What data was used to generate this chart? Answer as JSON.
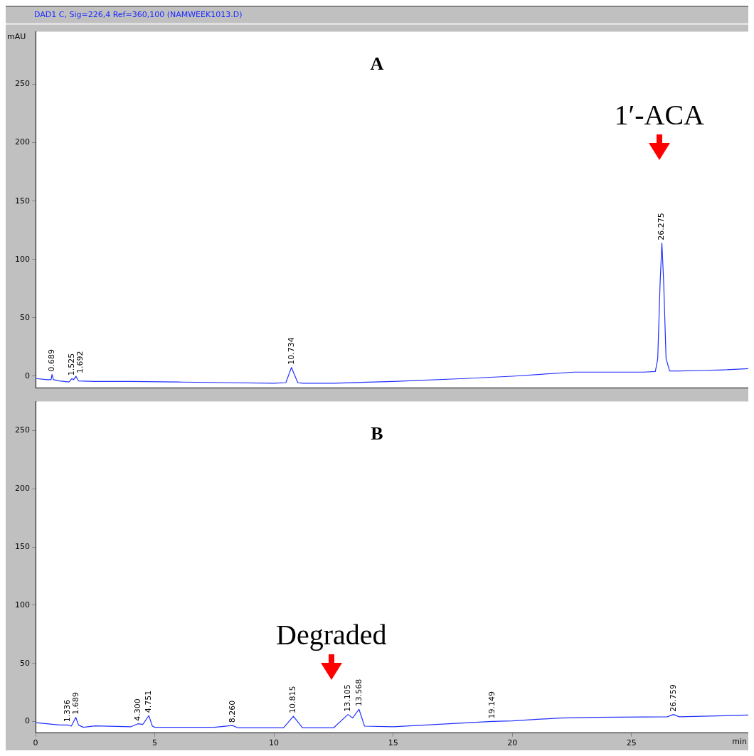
{
  "chart_data": [
    {
      "type": "line",
      "title": "DAD1 C, Sig=226,4 Ref=360,100 (NAMWEEK1013.D)",
      "ylabel": "mAU",
      "xlim": [
        0,
        29.9
      ],
      "ylim": [
        -10,
        295
      ],
      "xticks": [
        0,
        5,
        10,
        15,
        20,
        25
      ],
      "yticks": [
        0,
        50,
        100,
        150,
        200,
        250
      ],
      "tick_labels": "y",
      "annotations": [
        "A",
        "1′-ACA",
        {
          "text": "0.689",
          "x": 0.689,
          "y": 1.5
        },
        {
          "text": "1.525",
          "x": 1.525,
          "y": -2
        },
        {
          "text": "1.692",
          "x": 1.692,
          "y": 0
        },
        {
          "text": "10.734",
          "x": 10.734,
          "y": 7.5
        },
        {
          "text": "26.275",
          "x": 26.275,
          "y": 114
        }
      ],
      "series": [
        {
          "color": "#2030ff",
          "x": [
            0,
            0.5,
            0.65,
            0.689,
            0.75,
            1.0,
            1.4,
            1.525,
            1.6,
            1.692,
            1.8,
            2.5,
            4,
            6,
            8,
            10,
            10.5,
            10.734,
            11.0,
            11.2,
            12.5,
            15,
            18,
            20,
            22.6,
            25.5,
            26.0,
            26.1,
            26.2,
            26.275,
            26.35,
            26.45,
            26.6,
            27,
            28,
            29,
            29.9
          ],
          "values": [
            -2,
            -3,
            -3,
            1.5,
            -3,
            -4,
            -5,
            -2,
            -3,
            0,
            -4,
            -4.5,
            -4.5,
            -5,
            -5.5,
            -6,
            -5.5,
            7.5,
            -5.5,
            -6,
            -6,
            -4.5,
            -2,
            0,
            3.5,
            3.5,
            4,
            15,
            80,
            114,
            80,
            15,
            4.5,
            4.5,
            5,
            5.5,
            6.5
          ]
        }
      ]
    },
    {
      "type": "line",
      "xlabel": "min",
      "xlim": [
        0,
        29.9
      ],
      "ylim": [
        -10,
        275
      ],
      "xticks": [
        0,
        5,
        10,
        15,
        20,
        25
      ],
      "yticks": [
        0,
        50,
        100,
        150,
        200,
        250
      ],
      "annotations": [
        "B",
        "Degraded",
        {
          "text": "1.336",
          "x": 1.336,
          "y": -3
        },
        {
          "text": "1.689",
          "x": 1.689,
          "y": 3.5
        },
        {
          "text": "4.300",
          "x": 4.3,
          "y": -2
        },
        {
          "text": "4.751",
          "x": 4.751,
          "y": 5
        },
        {
          "text": "8.260",
          "x": 8.26,
          "y": -3.5
        },
        {
          "text": "10.815",
          "x": 10.815,
          "y": 4.5
        },
        {
          "text": "13.105",
          "x": 13.105,
          "y": 6
        },
        {
          "text": "13.568",
          "x": 13.568,
          "y": 10.5
        },
        {
          "text": "19.149",
          "x": 19.149,
          "y": 0
        },
        {
          "text": "26.759",
          "x": 26.759,
          "y": 6
        }
      ],
      "series": [
        {
          "color": "#2030ff",
          "x": [
            0,
            1,
            1.336,
            1.5,
            1.689,
            1.8,
            2,
            2.5,
            4,
            4.3,
            4.5,
            4.751,
            4.9,
            5,
            7.5,
            8.26,
            8.5,
            10,
            10.4,
            10.815,
            11.2,
            12.5,
            13.105,
            13.3,
            13.568,
            13.8,
            15,
            19.149,
            20,
            22,
            23.5,
            26.5,
            26.759,
            27,
            29.9
          ],
          "values": [
            -1,
            -3,
            -3,
            -4,
            3.5,
            -3,
            -5,
            -3.8,
            -4.5,
            -2,
            -2.5,
            5,
            -4,
            -5,
            -5,
            -3.5,
            -5.5,
            -5.5,
            -5.5,
            4.5,
            -5.5,
            -5.5,
            6,
            3,
            10.5,
            -4,
            -4.5,
            0,
            0.5,
            3,
            3.5,
            4,
            6,
            4,
            5.5
          ]
        }
      ]
    }
  ]
}
